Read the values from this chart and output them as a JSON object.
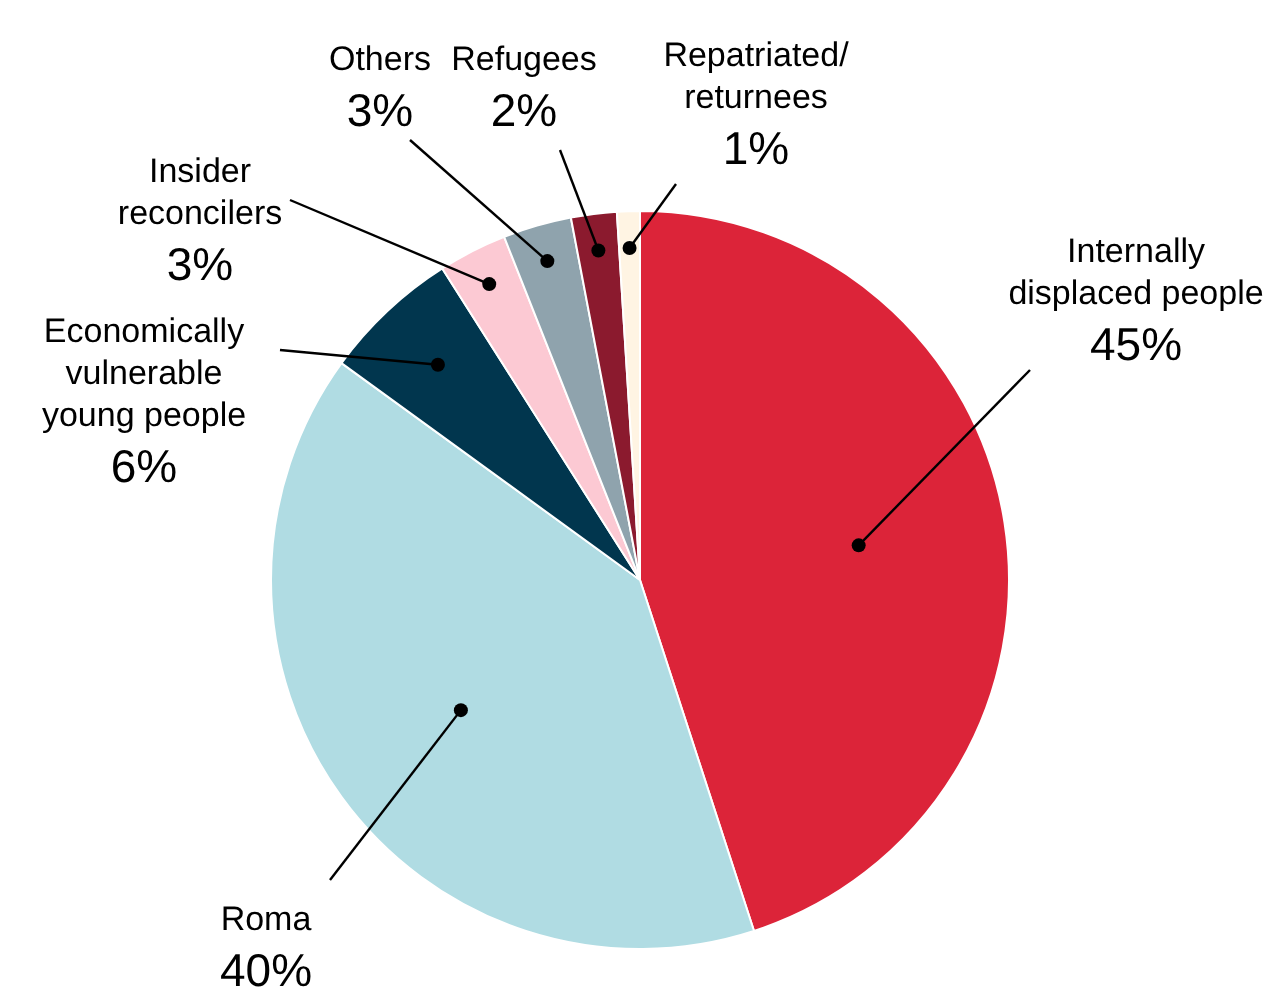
{
  "chart_data": {
    "type": "pie",
    "categories": [
      "Internally displaced people",
      "Roma",
      "Economically vulnerable young people",
      "Insider reconcilers",
      "Others",
      "Refugees",
      "Repatriated/ returnees"
    ],
    "values": [
      45,
      40,
      6,
      3,
      3,
      2,
      1
    ],
    "colors": [
      "#dc2439",
      "#b0dce3",
      "#01364e",
      "#fcc9d3",
      "#8fa3ad",
      "#8b1a2e",
      "#fff4e3"
    ],
    "value_labels": [
      "45%",
      "40%",
      "6%",
      "3%",
      "3%",
      "2%",
      "1%"
    ],
    "legend": false
  }
}
